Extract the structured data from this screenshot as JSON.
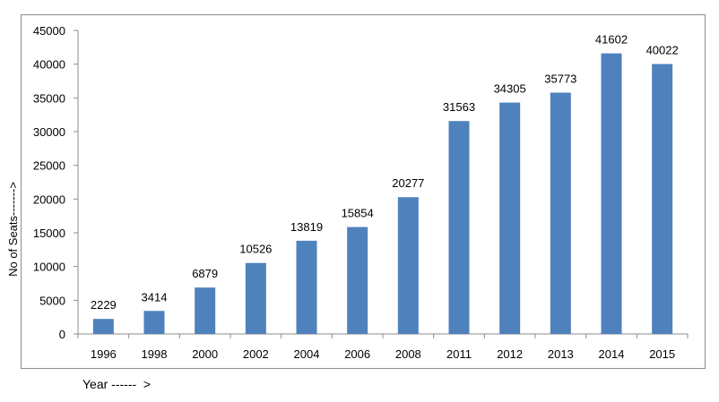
{
  "chart_data": {
    "type": "bar",
    "title": "",
    "xlabel": "Year ------  >",
    "ylabel": "No of Seats------->",
    "categories": [
      "1996",
      "1998",
      "2000",
      "2002",
      "2004",
      "2006",
      "2008",
      "2011",
      "2012",
      "2013",
      "2014",
      "2015"
    ],
    "series": [
      {
        "values": [
          2229,
          3414,
          6879,
          10526,
          13819,
          15854,
          20277,
          31563,
          34305,
          35773,
          41602,
          40022
        ]
      }
    ],
    "ylim": [
      0,
      45000
    ],
    "yticks": [
      0,
      5000,
      10000,
      15000,
      20000,
      25000,
      30000,
      35000,
      40000,
      45000
    ],
    "grid": false,
    "data_labels": true,
    "bar_color": "#4f81bd"
  }
}
